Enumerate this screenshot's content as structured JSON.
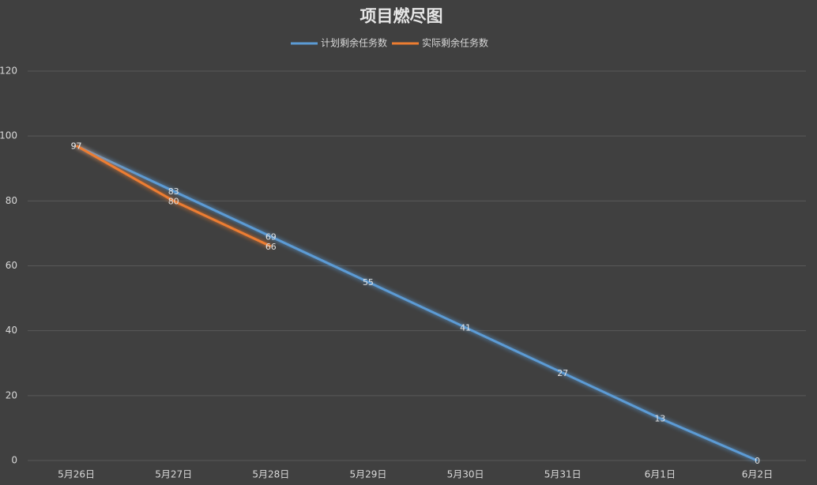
{
  "chart_data": {
    "type": "line",
    "title": "项目燃尽图",
    "categories": [
      "5月26日",
      "5月27日",
      "5月28日",
      "5月29日",
      "5月30日",
      "5月31日",
      "6月1日",
      "6月2日"
    ],
    "series": [
      {
        "name": "计划剩余任务数",
        "color": "#5b9bd5",
        "values": [
          97,
          83,
          69,
          55,
          41,
          27,
          13,
          0
        ]
      },
      {
        "name": "实际剩余任务数",
        "color": "#ed7d31",
        "values": [
          97,
          80,
          66,
          null,
          null,
          null,
          null,
          null
        ]
      }
    ],
    "ylim": [
      0,
      120
    ],
    "yticks": [
      0,
      20,
      40,
      60,
      80,
      100,
      120
    ],
    "grid": true,
    "legend": "top"
  }
}
